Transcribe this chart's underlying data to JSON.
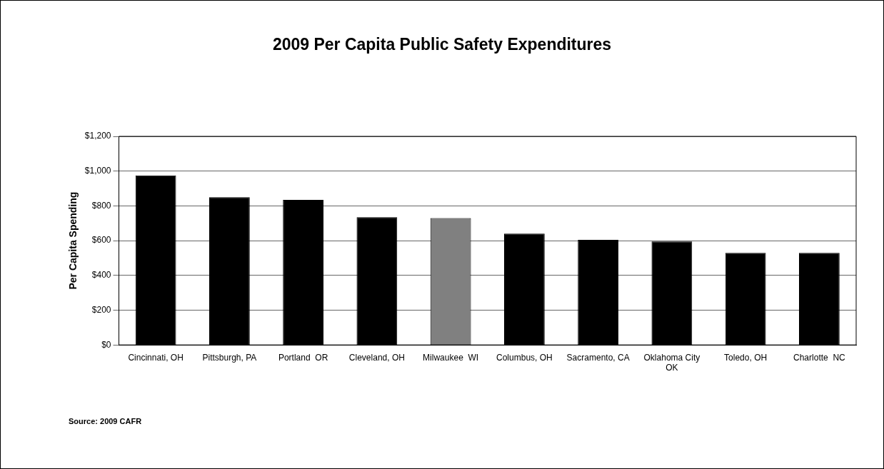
{
  "chart_data": {
    "type": "bar",
    "title": "2009 Per Capita Public Safety Expenditures",
    "ylabel": "Per Capita Spending",
    "categories": [
      "Cincinnati, OH",
      "Pittsburgh, PA",
      "Portland  OR",
      "Cleveland, OH",
      "Milwaukee  WI",
      "Columbus, OH",
      "Sacramento, CA",
      "Oklahoma City OK",
      "Toledo, OH",
      "Charlotte  NC"
    ],
    "values": [
      975,
      850,
      835,
      735,
      730,
      640,
      605,
      595,
      530,
      530
    ],
    "colors": [
      "#000000",
      "#000000",
      "#000000",
      "#000000",
      "#808080",
      "#000000",
      "#000000",
      "#000000",
      "#000000",
      "#000000"
    ],
    "ylim": [
      0,
      1200
    ],
    "yticks": [
      {
        "value": 0,
        "label": "$0"
      },
      {
        "value": 200,
        "label": "$200"
      },
      {
        "value": 400,
        "label": "$400"
      },
      {
        "value": 600,
        "label": "$600"
      },
      {
        "value": 800,
        "label": "$800"
      },
      {
        "value": 1000,
        "label": "$1,000"
      },
      {
        "value": 1200,
        "label": "$1,200"
      }
    ],
    "grid": "y",
    "legend": false,
    "annotations": [
      "Source:  2009 CAFR"
    ]
  }
}
